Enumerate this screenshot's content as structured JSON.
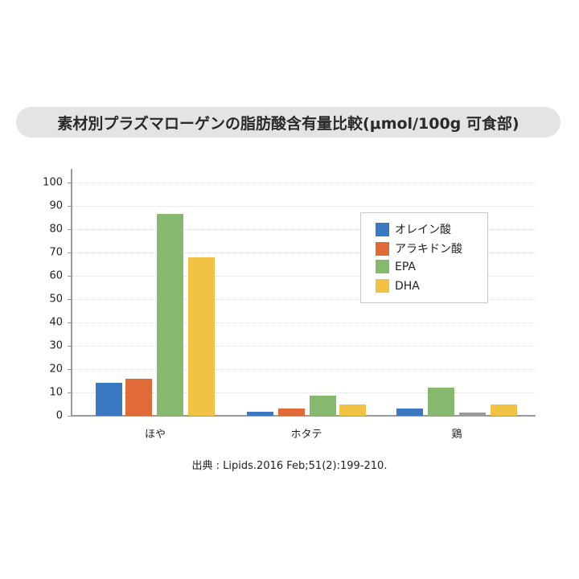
{
  "title": "素材別プラズマローゲンの脂肪酸含有量比較(μmol/100g 可食部)",
  "colors": {
    "oleic": "#3b78c2",
    "arachidonic": "#e06b38",
    "epa": "#86b86e",
    "dha": "#f2c244",
    "gray": "#9b9b9b",
    "title_bg": "#e4e4e4"
  },
  "legend": {
    "items": [
      {
        "label": "オレイン酸",
        "color": "#3b78c2"
      },
      {
        "label": "アラキドン酸",
        "color": "#e06b38"
      },
      {
        "label": "EPA",
        "color": "#86b86e"
      },
      {
        "label": "DHA",
        "color": "#f2c244"
      }
    ]
  },
  "y_ticks": [
    "0",
    "10",
    "20",
    "30",
    "40",
    "50",
    "60",
    "70",
    "80",
    "90",
    "100"
  ],
  "categories": [
    "ほや",
    "ホタテ",
    "鶏"
  ],
  "source": "出典 : Lipids.2016 Feb;51(2):199-210.",
  "chart_data": {
    "type": "bar",
    "title": "素材別プラズマローゲンの脂肪酸含有量比較(μmol/100g 可食部)",
    "xlabel": "",
    "ylabel": "",
    "ylim": [
      0,
      100
    ],
    "yticks": [
      0,
      10,
      20,
      30,
      40,
      50,
      60,
      70,
      80,
      90,
      100
    ],
    "grid": true,
    "legend_position": "upper right (inside)",
    "categories": [
      "ほや",
      "ホタテ",
      "鶏"
    ],
    "series": [
      {
        "name": "オレイン酸",
        "color": "#3b78c2",
        "values": [
          14.0,
          1.5,
          3.0
        ]
      },
      {
        "name": "アラキドン酸",
        "color": "#e06b38",
        "values": [
          15.6,
          3.0,
          1.4
        ]
      },
      {
        "name": "EPA",
        "color": "#86b86e",
        "values": [
          86.4,
          8.5,
          11.9
        ]
      },
      {
        "name": "DHA",
        "color": "#f2c244",
        "values": [
          67.8,
          4.8,
          4.8
        ]
      }
    ],
    "annotations": [
      "鶏のアラキドン酸バーは灰色で描画され、EPAの後(3番目)に配置されている"
    ],
    "source": "出典 : Lipids.2016 Feb;51(2):199-210."
  }
}
